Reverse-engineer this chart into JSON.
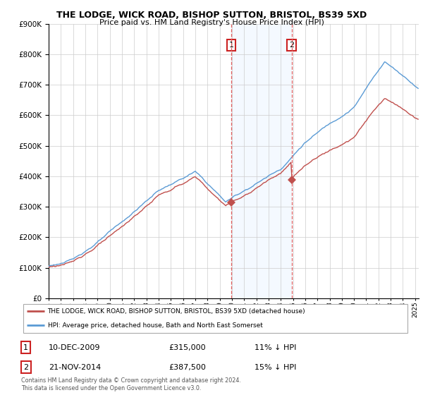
{
  "title": "THE LODGE, WICK ROAD, BISHOP SUTTON, BRISTOL, BS39 5XD",
  "subtitle": "Price paid vs. HM Land Registry's House Price Index (HPI)",
  "ylim": [
    0,
    900000
  ],
  "xlim_start": 1995.0,
  "xlim_end": 2025.3,
  "hpi_color": "#5B9BD5",
  "price_color": "#C0504D",
  "sale1_year": 2009.95,
  "sale1_price": 315000,
  "sale2_year": 2014.9,
  "sale2_price": 387500,
  "vline_color": "#E06060",
  "shade_color": "#DDEEFF",
  "legend_line1": "THE LODGE, WICK ROAD, BISHOP SUTTON, BRISTOL, BS39 5XD (detached house)",
  "legend_line2": "HPI: Average price, detached house, Bath and North East Somerset",
  "table_row1": [
    "1",
    "10-DEC-2009",
    "£315,000",
    "11% ↓ HPI"
  ],
  "table_row2": [
    "2",
    "21-NOV-2014",
    "£387,500",
    "15% ↓ HPI"
  ],
  "footnote": "Contains HM Land Registry data © Crown copyright and database right 2024.\nThis data is licensed under the Open Government Licence v3.0.",
  "background_color": "#FFFFFF",
  "plot_bg_color": "#FFFFFF",
  "grid_color": "#CCCCCC"
}
